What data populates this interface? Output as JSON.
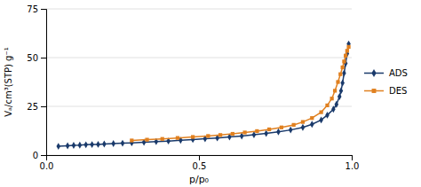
{
  "chart_data": {
    "type": "line",
    "x_label": "p/p₀",
    "y_label": "Vₐ/cm³(STP) g⁻¹",
    "series": [
      {
        "name": "ADS",
        "color": "#1a3a6b",
        "marker": "diamond",
        "x": [
          0.04,
          0.07,
          0.09,
          0.11,
          0.13,
          0.15,
          0.17,
          0.19,
          0.22,
          0.25,
          0.28,
          0.32,
          0.36,
          0.4,
          0.44,
          0.48,
          0.52,
          0.56,
          0.6,
          0.64,
          0.68,
          0.72,
          0.76,
          0.8,
          0.84,
          0.87,
          0.9,
          0.92,
          0.94,
          0.95,
          0.96,
          0.965,
          0.97,
          0.975,
          0.98,
          0.985,
          0.99
        ],
        "values": [
          4.5,
          4.8,
          5.0,
          5.1,
          5.3,
          5.4,
          5.5,
          5.7,
          5.9,
          6.1,
          6.3,
          6.6,
          6.9,
          7.2,
          7.6,
          8.0,
          8.4,
          8.8,
          9.3,
          9.8,
          10.4,
          11.1,
          11.9,
          12.9,
          14.2,
          15.8,
          18.0,
          20.5,
          23.5,
          26.0,
          30.0,
          33.0,
          37.0,
          42.0,
          47.0,
          52.0,
          57.0
        ]
      },
      {
        "name": "DES",
        "color": "#e08020",
        "marker": "square",
        "x": [
          0.28,
          0.33,
          0.38,
          0.43,
          0.48,
          0.53,
          0.57,
          0.61,
          0.65,
          0.69,
          0.73,
          0.77,
          0.81,
          0.84,
          0.87,
          0.9,
          0.92,
          0.935,
          0.945,
          0.955,
          0.963,
          0.97,
          0.975,
          0.98,
          0.985,
          0.99
        ],
        "values": [
          7.5,
          7.9,
          8.3,
          8.8,
          9.3,
          9.8,
          10.3,
          10.9,
          11.6,
          12.3,
          13.2,
          14.2,
          15.5,
          17.0,
          19.0,
          22.0,
          25.5,
          29.0,
          33.0,
          37.5,
          41.5,
          45.0,
          48.0,
          51.0,
          53.5,
          55.5
        ]
      }
    ],
    "xlim": [
      0,
      1.0
    ],
    "ylim": [
      0,
      75
    ],
    "xticks": [
      {
        "value": 0,
        "label": "0.0"
      },
      0.5,
      {
        "value": 1,
        "label": "1.0"
      }
    ],
    "yticks": [
      0,
      25,
      50,
      75
    ],
    "grid": "y",
    "legend": "right"
  }
}
